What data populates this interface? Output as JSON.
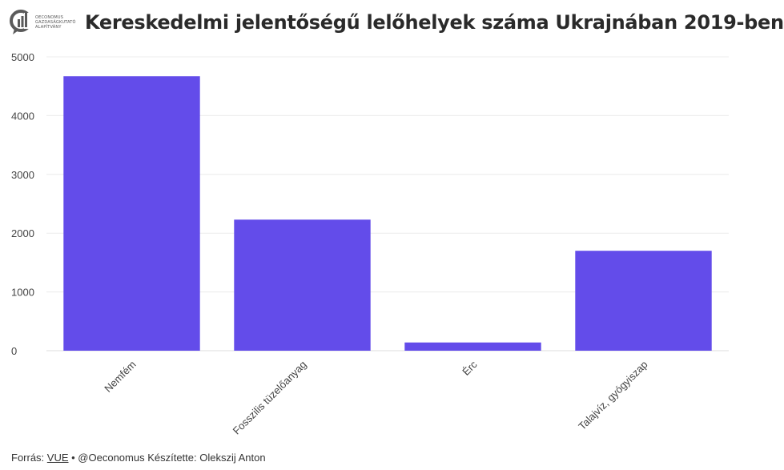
{
  "header": {
    "logo_lines": [
      "OECONOMUS",
      "GAZDASÁGKUTATÓ",
      "ALAPÍTVÁNY"
    ],
    "title": "Kereskedelmi jelentőségű lelőhelyek száma Ukrajnában 2019-ben"
  },
  "chart_data": {
    "type": "bar",
    "title": "Kereskedelmi jelentőségű lelőhelyek száma Ukrajnában 2019-ben",
    "categories": [
      "Nemfém",
      "Fosszilis tüzelőanyag",
      "Érc",
      "Talajvíz, gyógyiszap"
    ],
    "values": [
      4670,
      2230,
      140,
      1700
    ],
    "ylim": [
      0,
      5000
    ],
    "yticks": [
      0,
      1000,
      2000,
      3000,
      4000,
      5000
    ],
    "grid": true,
    "bar_color": "#634cea"
  },
  "footer": {
    "source_prefix": "Forrás: ",
    "source_link": "VUE",
    "rest": " • @Oeconomus Készítette: Olekszij Anton"
  }
}
